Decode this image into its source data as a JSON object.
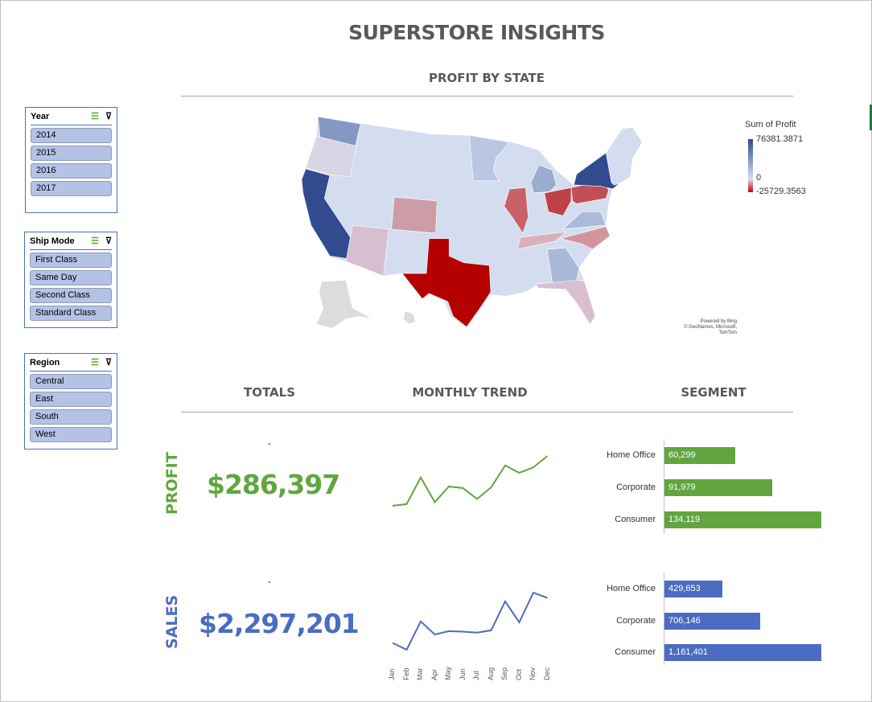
{
  "title": "SUPERSTORE INSIGHTS",
  "sections": {
    "map": "PROFIT BY STATE",
    "totals": "TOTALS",
    "trend": "MONTHLY TREND",
    "segment": "SEGMENT"
  },
  "slicers": [
    {
      "title": "Year",
      "items": [
        "2014",
        "2015",
        "2016",
        "2017"
      ]
    },
    {
      "title": "Ship Mode",
      "items": [
        "First Class",
        "Same Day",
        "Second Class",
        "Standard Class"
      ]
    },
    {
      "title": "Region",
      "items": [
        "Central",
        "East",
        "South",
        "West"
      ]
    }
  ],
  "map_legend": {
    "title": "Sum of Profit",
    "max": "76381.3871",
    "mid": "0",
    "min": "-25729.3563",
    "colors": {
      "max": "#2f4b93",
      "zero": "#d4ddef",
      "min": "#b50000"
    }
  },
  "map_credit": {
    "line1": "Powered by Bing",
    "line2": "© GeoNames, Microsoft, TomTom"
  },
  "profit": {
    "label": "PROFIT",
    "total": "$286,397",
    "dash": "-",
    "color": "#62a53f"
  },
  "sales": {
    "label": "SALES",
    "total": "$2,297,201",
    "dash": "-",
    "color": "#4a6cc1"
  },
  "chart_data": [
    {
      "type": "line",
      "x": [
        "Jan",
        "Feb",
        "Mar",
        "Apr",
        "May",
        "Jun",
        "Jul",
        "Aug",
        "Sep",
        "Oct",
        "Nov",
        "Dec"
      ],
      "series": [
        {
          "values": [
            9134,
            10294,
            28595,
            11588,
            22411,
            21285,
            13832,
            21776,
            36857,
            31784,
            35468,
            43369
          ]
        }
      ],
      "color": "#62a53f"
    },
    {
      "type": "line",
      "x": [
        "Jan",
        "Feb",
        "Mar",
        "Apr",
        "May",
        "Jun",
        "Jul",
        "Aug",
        "Sep",
        "Oct",
        "Nov",
        "Dec"
      ],
      "series": [
        {
          "values": [
            94925,
            59751,
            205005,
            137762,
            155029,
            152718,
            147238,
            159044,
            307650,
            200323,
            352461,
            325293
          ]
        }
      ],
      "color": "#4a6cc1"
    },
    {
      "type": "bar",
      "categories": [
        "Home Office",
        "Corporate",
        "Consumer"
      ],
      "values": [
        60299,
        91979,
        134119
      ],
      "labels": [
        "60,299",
        "91,979",
        "134,119"
      ],
      "color": "#62a53f"
    },
    {
      "type": "bar",
      "categories": [
        "Home Office",
        "Corporate",
        "Consumer"
      ],
      "values": [
        429653,
        706146,
        1161401
      ],
      "labels": [
        "429,653",
        "706,146",
        "1,161,401"
      ],
      "color": "#4a6cc1"
    }
  ]
}
